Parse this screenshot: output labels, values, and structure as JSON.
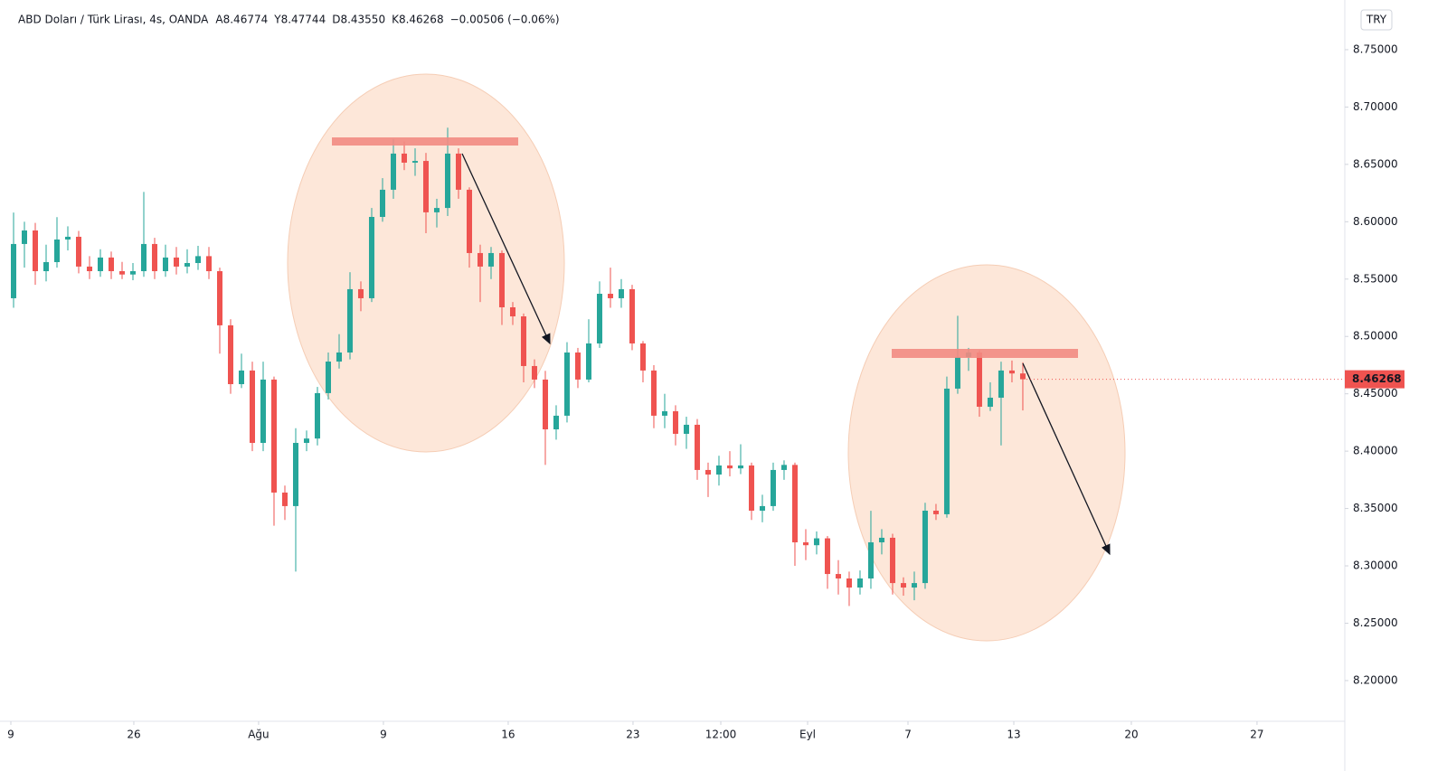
{
  "header": {
    "symbol": "ABD Doları / Türk Lirası, 4s, OANDA",
    "ohlc_labels": [
      "A",
      "Y",
      "D",
      "K"
    ],
    "ohlc_values": [
      "8.46774",
      "8.47744",
      "8.43550",
      "8.46268"
    ],
    "change": "−0.00506 (−0.06%)",
    "currency": "TRY",
    "last_price_label": "8.46268"
  },
  "chart_data": {
    "type": "candlestick",
    "up_color": "#26a69a",
    "down_color": "#ef5350",
    "grid": false,
    "xlim": [
      -0.25,
      122.67
    ],
    "xticks": [
      {
        "value": -0.25,
        "label": "9"
      },
      {
        "value": 11.08,
        "label": "26"
      },
      {
        "value": 22.58,
        "label": "Ağu"
      },
      {
        "value": 34.08,
        "label": "9"
      },
      {
        "value": 45.58,
        "label": "16"
      },
      {
        "value": 57.08,
        "label": "23"
      },
      {
        "value": 65.17,
        "label": "12:00"
      },
      {
        "value": 73.17,
        "label": "Eyl"
      },
      {
        "value": 82.42,
        "label": "7"
      },
      {
        "value": 92.17,
        "label": "13"
      },
      {
        "value": 103,
        "label": "20"
      },
      {
        "value": 114.58,
        "label": "27"
      }
    ],
    "ylim": [
      8.1645,
      8.787
    ],
    "yticks": [
      {
        "value": 8.2,
        "label": "8.20000"
      },
      {
        "value": 8.25,
        "label": "8.25000"
      },
      {
        "value": 8.3,
        "label": "8.30000"
      },
      {
        "value": 8.35,
        "label": "8.35000"
      },
      {
        "value": 8.4,
        "label": "8.40000"
      },
      {
        "value": 8.45,
        "label": "8.45000"
      },
      {
        "value": 8.5,
        "label": "8.50000"
      },
      {
        "value": 8.55,
        "label": "8.55000"
      },
      {
        "value": 8.6,
        "label": "8.60000"
      },
      {
        "value": 8.65,
        "label": "8.65000"
      },
      {
        "value": 8.7,
        "label": "8.70000"
      },
      {
        "value": 8.75,
        "label": "8.75000"
      }
    ],
    "open": [
      8.5333,
      8.5806,
      8.5924,
      8.5569,
      8.5648,
      8.5845,
      8.5869,
      8.5609,
      8.5569,
      8.5688,
      8.5569,
      8.554,
      8.5569,
      8.5806,
      8.5569,
      8.5688,
      8.5609,
      8.564,
      8.57,
      8.5569,
      8.5097,
      8.4584,
      8.4703,
      8.4072,
      8.4624,
      8.3639,
      8.3521,
      8.4072,
      8.411,
      8.4506,
      8.4781,
      8.486,
      8.5412,
      8.5333,
      8.6042,
      8.6279,
      8.6594,
      8.6515,
      8.653,
      8.6082,
      8.612,
      8.6594,
      8.6279,
      8.5727,
      8.5609,
      8.5727,
      8.5254,
      8.5175,
      8.4742,
      8.4624,
      8.419,
      8.4309,
      8.486,
      8.4624,
      8.4939,
      8.5372,
      8.5333,
      8.5412,
      8.4939,
      8.4703,
      8.4309,
      8.4348,
      8.4151,
      8.423,
      8.3836,
      8.3796,
      8.3875,
      8.385,
      8.3875,
      8.3481,
      8.3521,
      8.3836,
      8.388,
      8.3205,
      8.318,
      8.324,
      8.2929,
      8.289,
      8.2811,
      8.289,
      8.3205,
      8.3245,
      8.285,
      8.2811,
      8.285,
      8.3481,
      8.345,
      8.4545,
      8.4821,
      8.486,
      8.4387,
      8.4466,
      8.4703,
      8.46774
    ],
    "high": [
      8.608,
      8.6,
      8.599,
      8.58,
      8.604,
      8.596,
      8.592,
      8.57,
      8.576,
      8.574,
      8.565,
      8.564,
      8.626,
      8.586,
      8.58,
      8.578,
      8.576,
      8.579,
      8.578,
      8.56,
      8.515,
      8.485,
      8.478,
      8.478,
      8.465,
      8.37,
      8.42,
      8.418,
      8.456,
      8.486,
      8.502,
      8.556,
      8.548,
      8.612,
      8.638,
      8.672,
      8.67,
      8.664,
      8.66,
      8.62,
      8.682,
      8.664,
      8.63,
      8.58,
      8.578,
      8.575,
      8.53,
      8.52,
      8.48,
      8.47,
      8.44,
      8.495,
      8.49,
      8.515,
      8.548,
      8.56,
      8.55,
      8.545,
      8.496,
      8.475,
      8.45,
      8.44,
      8.43,
      8.428,
      8.39,
      8.396,
      8.4,
      8.406,
      8.39,
      8.362,
      8.39,
      8.392,
      8.39,
      8.332,
      8.33,
      8.326,
      8.305,
      8.295,
      8.296,
      8.348,
      8.332,
      8.328,
      8.29,
      8.295,
      8.355,
      8.354,
      8.465,
      8.518,
      8.49,
      8.488,
      8.46,
      8.478,
      8.479,
      8.47744
    ],
    "low": [
      8.525,
      8.56,
      8.545,
      8.548,
      8.56,
      8.575,
      8.555,
      8.55,
      8.552,
      8.55,
      8.55,
      8.549,
      8.552,
      8.55,
      8.552,
      8.554,
      8.555,
      8.558,
      8.55,
      8.485,
      8.45,
      8.455,
      8.4,
      8.4,
      8.335,
      8.34,
      8.295,
      8.4,
      8.405,
      8.445,
      8.472,
      8.48,
      8.522,
      8.53,
      8.6,
      8.62,
      8.645,
      8.64,
      8.59,
      8.595,
      8.605,
      8.62,
      8.56,
      8.53,
      8.55,
      8.51,
      8.51,
      8.46,
      8.455,
      8.388,
      8.41,
      8.425,
      8.455,
      8.46,
      8.49,
      8.525,
      8.525,
      8.488,
      8.46,
      8.42,
      8.42,
      8.405,
      8.402,
      8.375,
      8.36,
      8.37,
      8.378,
      8.38,
      8.34,
      8.338,
      8.348,
      8.375,
      8.3,
      8.305,
      8.31,
      8.28,
      8.275,
      8.265,
      8.275,
      8.28,
      8.31,
      8.275,
      8.274,
      8.27,
      8.28,
      8.34,
      8.342,
      8.45,
      8.47,
      8.43,
      8.435,
      8.405,
      8.46,
      8.4355
    ],
    "close": [
      8.5806,
      8.5924,
      8.5569,
      8.5648,
      8.5845,
      8.5869,
      8.5609,
      8.5569,
      8.5688,
      8.5569,
      8.554,
      8.5569,
      8.5806,
      8.5569,
      8.5688,
      8.5609,
      8.564,
      8.57,
      8.5569,
      8.5097,
      8.4584,
      8.4703,
      8.4072,
      8.4624,
      8.3639,
      8.3521,
      8.4072,
      8.411,
      8.4506,
      8.4781,
      8.486,
      8.5412,
      8.5333,
      8.6042,
      8.6279,
      8.6594,
      8.6515,
      8.653,
      8.6082,
      8.612,
      8.6594,
      8.6279,
      8.5727,
      8.5609,
      8.5727,
      8.5254,
      8.5175,
      8.4742,
      8.4624,
      8.419,
      8.4309,
      8.486,
      8.4624,
      8.4939,
      8.5372,
      8.5333,
      8.5412,
      8.4939,
      8.4703,
      8.4309,
      8.4348,
      8.4151,
      8.423,
      8.3836,
      8.3796,
      8.3875,
      8.385,
      8.3875,
      8.3481,
      8.3521,
      8.3836,
      8.388,
      8.3205,
      8.318,
      8.324,
      8.2929,
      8.289,
      8.2811,
      8.289,
      8.3205,
      8.3245,
      8.285,
      8.2811,
      8.285,
      8.3481,
      8.345,
      8.4545,
      8.4821,
      8.486,
      8.4387,
      8.4466,
      8.4703,
      8.46774,
      8.46268
    ]
  }
}
